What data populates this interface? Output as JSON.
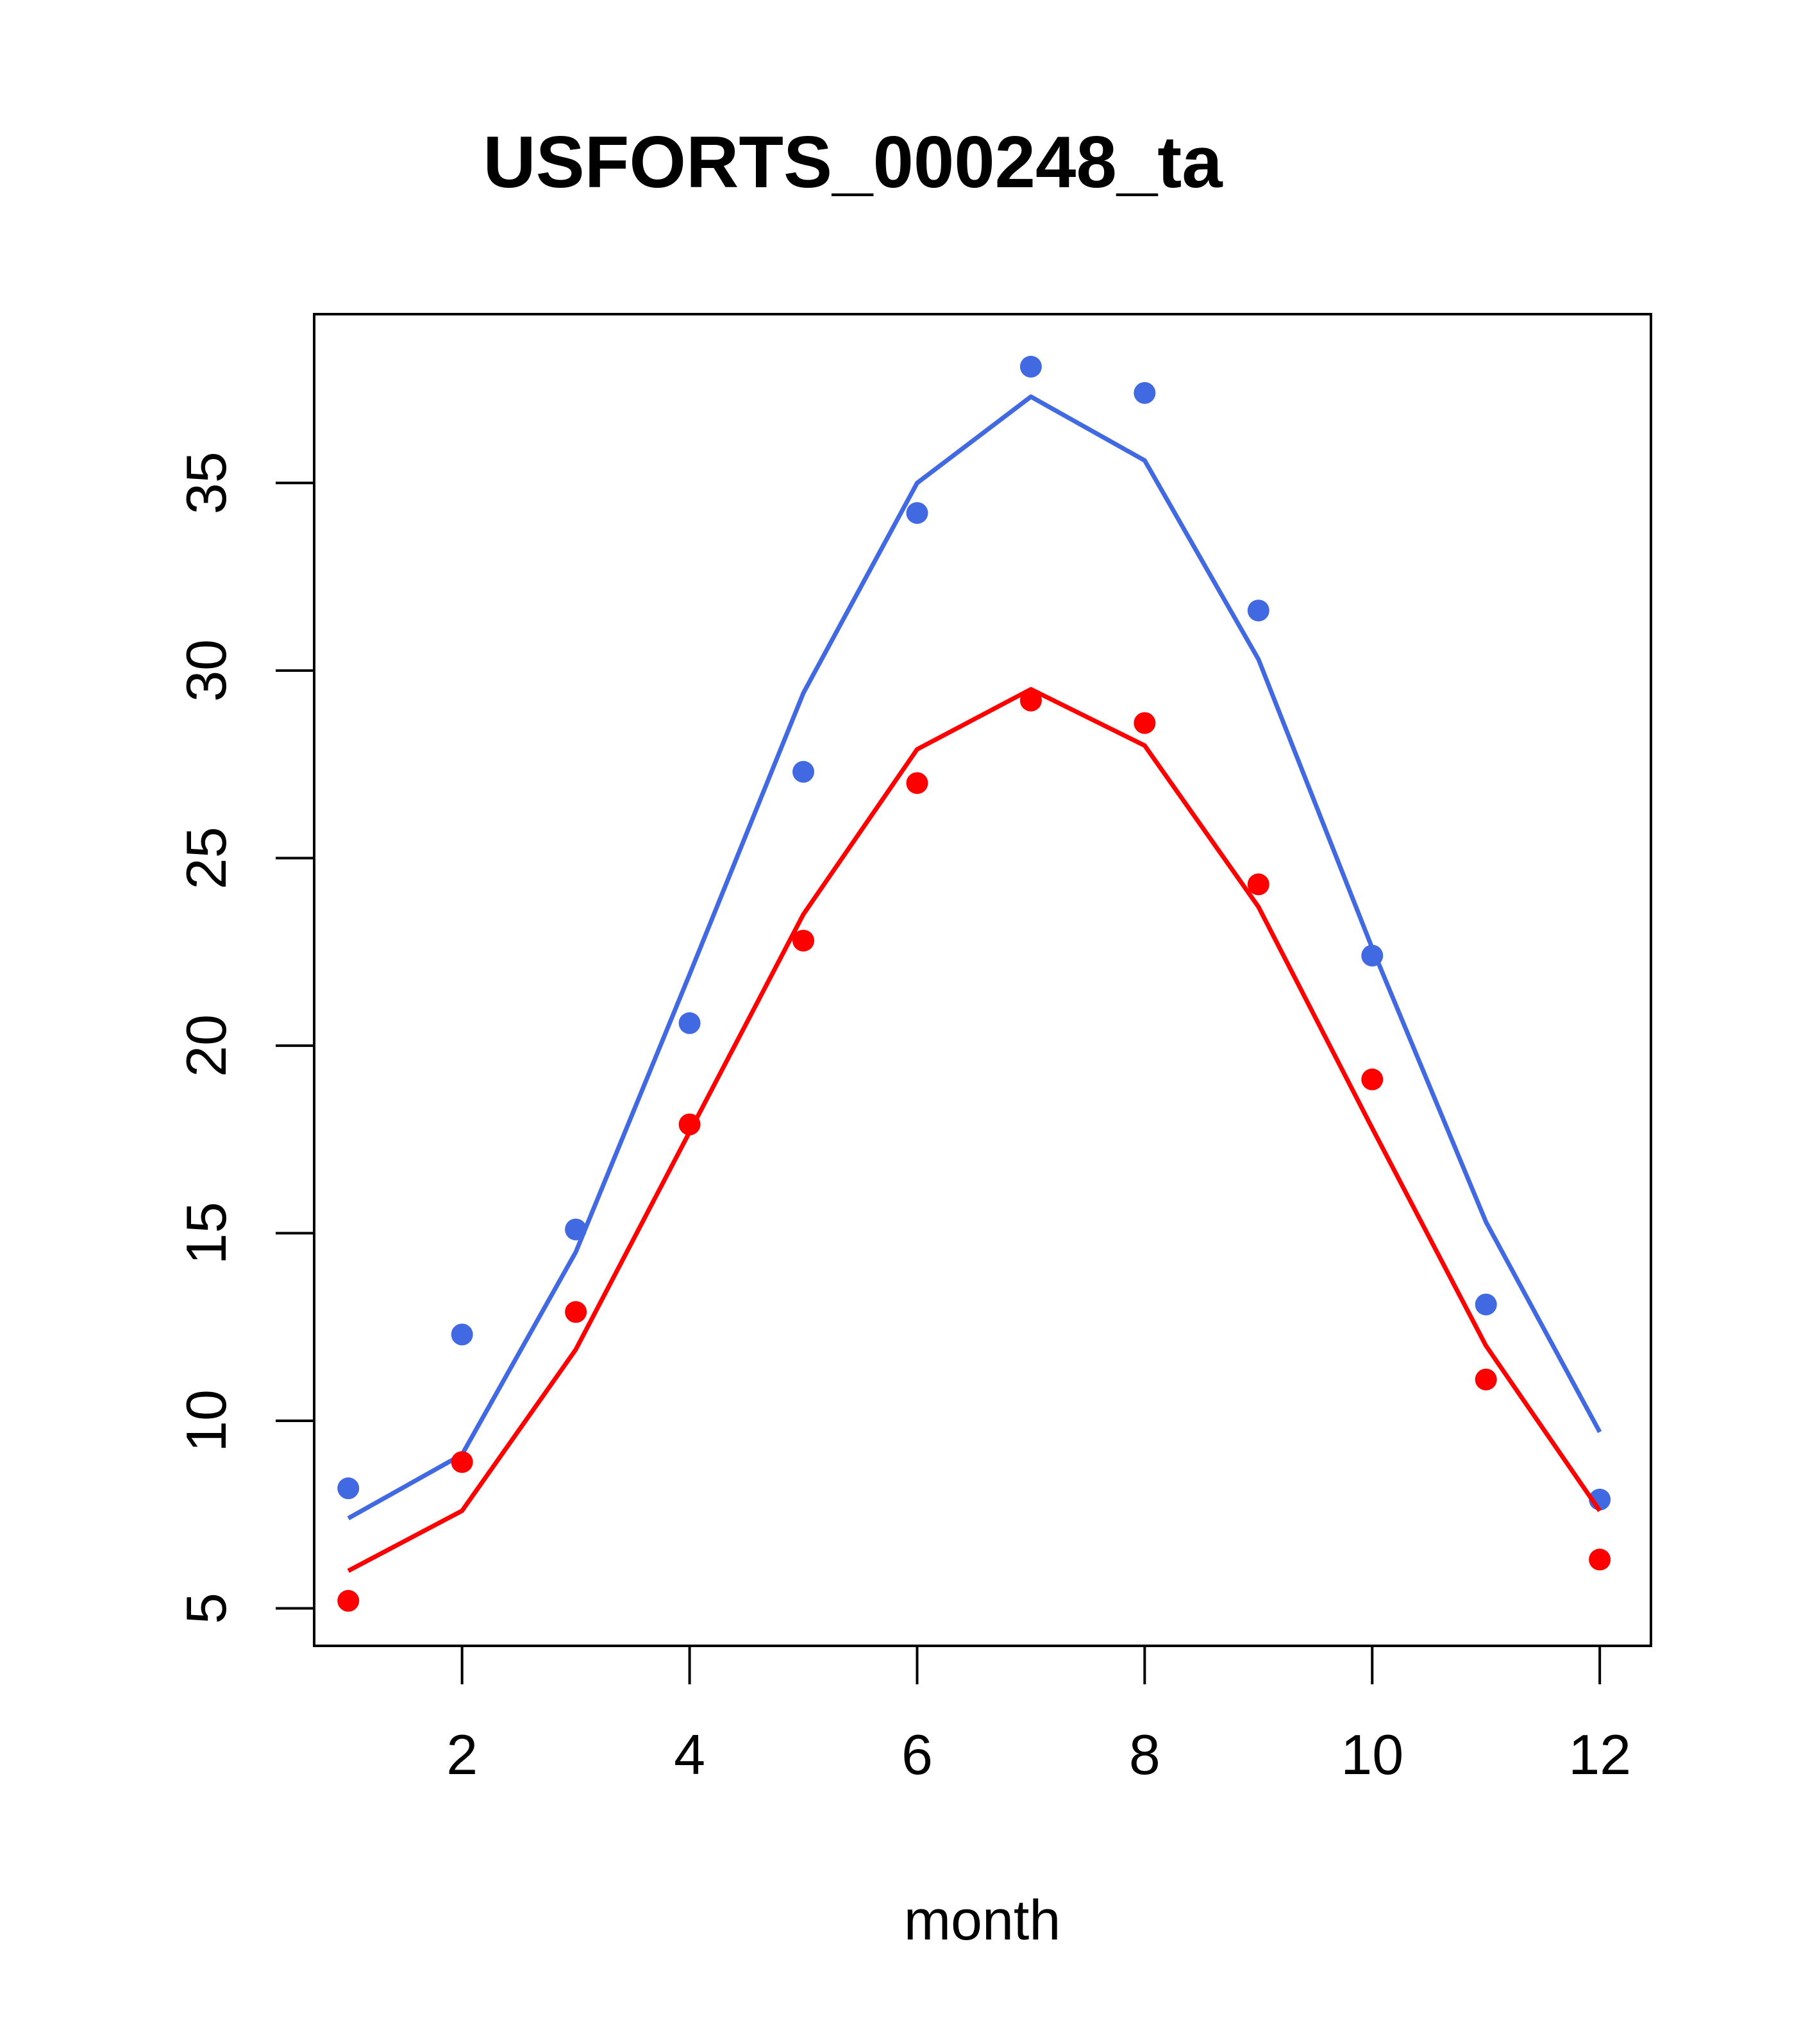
{
  "chart_data": {
    "type": "line",
    "title": "USFORTS_000248_ta",
    "xlabel": "month",
    "ylabel": "",
    "xlim": [
      0.7,
      12.45
    ],
    "ylim": [
      4.0,
      39.5
    ],
    "x_ticks": [
      2,
      4,
      6,
      8,
      10,
      12
    ],
    "y_ticks": [
      5,
      10,
      15,
      20,
      25,
      30,
      35
    ],
    "grid": false,
    "legend": "none",
    "x": [
      1,
      2,
      3,
      4,
      5,
      6,
      7,
      8,
      9,
      10,
      11,
      12
    ],
    "series": [
      {
        "color": "#4169E1",
        "points": [
          8.2,
          12.3,
          15.1,
          20.6,
          27.3,
          34.2,
          38.1,
          37.4,
          31.6,
          22.4,
          13.1,
          7.9
        ],
        "line": [
          7.4,
          9.1,
          14.5,
          21.9,
          29.4,
          35.0,
          37.3,
          35.6,
          30.3,
          22.6,
          15.3,
          9.7
        ]
      },
      {
        "color": "#FF0000",
        "points": [
          5.2,
          8.9,
          12.9,
          17.9,
          22.8,
          27.0,
          29.2,
          28.6,
          24.3,
          19.1,
          11.1,
          6.3
        ],
        "line": [
          6.0,
          7.6,
          11.9,
          17.7,
          23.5,
          27.9,
          29.5,
          28.0,
          23.7,
          17.8,
          12.0,
          7.6
        ]
      }
    ]
  }
}
